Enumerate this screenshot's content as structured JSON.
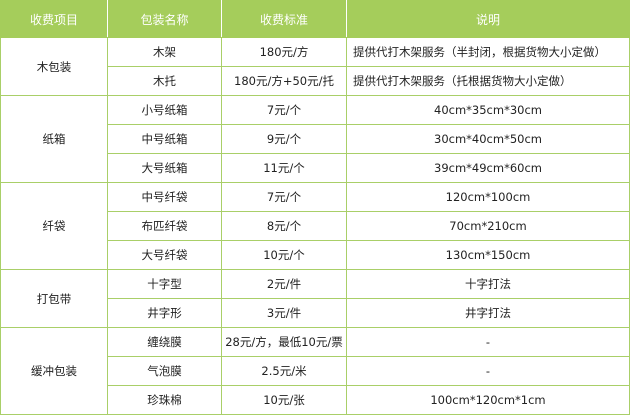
{
  "headers": [
    "收费项目",
    "包装名称",
    "收费标准",
    "说明"
  ],
  "groups": [
    {
      "category": "木包装",
      "rows": [
        {
          "name": "木架",
          "price": "180元/方",
          "note": "提供代打木架服务（半封闭，根据货物大小定做）",
          "align": "left"
        },
        {
          "name": "木托",
          "price": "180元/方+50元/托",
          "note": "提供代打木架服务（托根据货物大小定做）",
          "align": "left"
        }
      ]
    },
    {
      "category": "纸箱",
      "rows": [
        {
          "name": "小号纸箱",
          "price": "7元/个",
          "note": "40cm*35cm*30cm"
        },
        {
          "name": "中号纸箱",
          "price": "9元/个",
          "note": "30cm*40cm*50cm"
        },
        {
          "name": "大号纸箱",
          "price": "11元/个",
          "note": "39cm*49cm*60cm"
        }
      ]
    },
    {
      "category": "纤袋",
      "rows": [
        {
          "name": "中号纤袋",
          "price": "7元/个",
          "note": "120cm*100cm"
        },
        {
          "name": "布匹纤袋",
          "price": "8元/个",
          "note": "70cm*210cm"
        },
        {
          "name": "大号纤袋",
          "price": "10元/个",
          "note": "130cm*150cm"
        }
      ]
    },
    {
      "category": "打包带",
      "rows": [
        {
          "name": "十字型",
          "price": "2元/件",
          "note": "十字打法"
        },
        {
          "name": "井字形",
          "price": "3元/件",
          "note": "井字打法"
        }
      ]
    },
    {
      "category": "缓冲包装",
      "rows": [
        {
          "name": "缠绕膜",
          "price": "28元/方，最低10元/票",
          "note": "-"
        },
        {
          "name": "气泡膜",
          "price": "2.5元/米",
          "note": "-"
        },
        {
          "name": "珍珠棉",
          "price": "10元/张",
          "note": "100cm*120cm*1cm"
        }
      ]
    }
  ],
  "colors": {
    "header_bg": "#a5cd5b",
    "border": "#a9cf68"
  }
}
